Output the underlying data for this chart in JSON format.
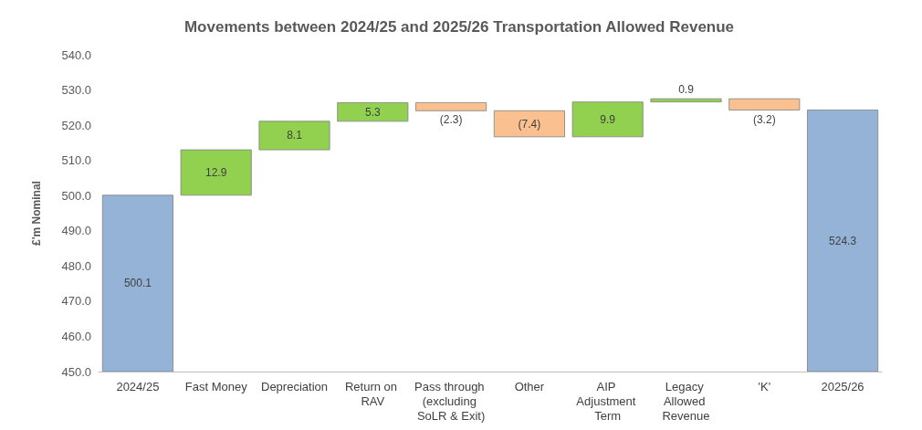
{
  "chart_data": {
    "type": "bar",
    "title": "Movements between 2024/25 and 2025/26 Transportation Allowed Revenue",
    "ylabel": "£'m Nominal",
    "categories": [
      "2024/25",
      "Fast Money",
      "Depreciation",
      "Return on RAV",
      "Pass through (excluding SoLR & Exit)",
      "Other",
      "AIP Adjustment Term",
      "Legacy Allowed Revenue",
      "'K'",
      "2025/26"
    ],
    "values": [
      500.1,
      12.9,
      8.1,
      5.3,
      -2.3,
      -7.4,
      9.9,
      0.9,
      -3.2,
      524.3
    ],
    "base": [
      0,
      500.1,
      513.0,
      521.1,
      526.4,
      524.1,
      516.7,
      526.6,
      527.5,
      0
    ],
    "colors": [
      "#95b3d7",
      "#92d050",
      "#92d050",
      "#92d050",
      "#fac090",
      "#fac090",
      "#92d050",
      "#92d050",
      "#fac090",
      "#95b3d7"
    ],
    "value_labels": [
      "500.1",
      "12.9",
      "8.1",
      "5.3",
      "(2.3)",
      "(7.4)",
      "9.9",
      "0.9",
      "(3.2)",
      "524.3"
    ],
    "ylim": [
      450,
      540
    ],
    "yticks": [
      {
        "value": 450,
        "label": "450.0"
      },
      {
        "value": 460,
        "label": "460.0"
      },
      {
        "value": 470,
        "label": "470.0"
      },
      {
        "value": 480,
        "label": "480.0"
      },
      {
        "value": 490,
        "label": "490.0"
      },
      {
        "value": 500,
        "label": "500.0"
      },
      {
        "value": 510,
        "label": "510.0"
      },
      {
        "value": 520,
        "label": "520.0"
      },
      {
        "value": 530,
        "label": "530.0"
      },
      {
        "value": 540,
        "label": "540.0"
      }
    ],
    "grid": false
  }
}
